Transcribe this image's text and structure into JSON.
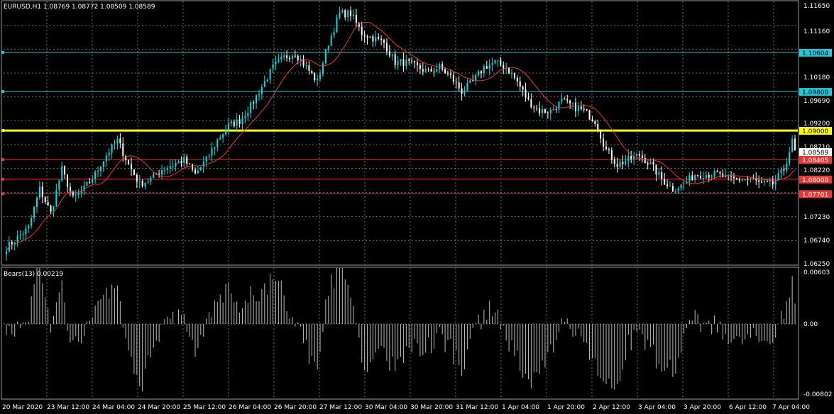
{
  "main_header": {
    "text": "EURUSD,H1  1.08769 1.08772 1.08509 1.08589"
  },
  "indicator_header": {
    "text": "Bears(13) 0.00219"
  },
  "price_axis": [
    "1.11650",
    "1.11160",
    "1.10180",
    "1.09690",
    "1.09200",
    "1.08710",
    "1.08220",
    "1.07230",
    "1.06740",
    "1.06250"
  ],
  "indicator_axis": [
    "0.00603",
    "0.00",
    "-0.00802"
  ],
  "current_price": {
    "text": "1.08589",
    "value": 1.08589
  },
  "levels": [
    {
      "label": "1.10604",
      "value": 1.10604,
      "color": "#26c6da"
    },
    {
      "label": "1.09800",
      "value": 1.098,
      "color": "#26c6da"
    },
    {
      "label": "1.09000",
      "value": 1.09,
      "color": "#ffff00"
    },
    {
      "label": "1.08405",
      "value": 1.08405,
      "color": "#e53935"
    },
    {
      "label": "1.08000",
      "value": 1.08,
      "color": "#e53935"
    },
    {
      "label": "1.07701",
      "value": 1.07701,
      "color": "#e53935"
    }
  ],
  "time_axis": [
    "20 Mar 2020",
    "23 Mar 12:00",
    "24 Mar 04:00",
    "24 Mar 20:00",
    "25 Mar 12:00",
    "26 Mar 04:00",
    "26 Mar 20:00",
    "27 Mar 12:00",
    "30 Mar 04:00",
    "30 Mar 20:00",
    "31 Mar 12:00",
    "1 Apr 04:00",
    "1 Apr 20:00",
    "2 Apr 12:00",
    "3 Apr 04:00",
    "3 Apr 20:00",
    "6 Apr 12:00",
    "7 Apr 04:00"
  ],
  "colors": {
    "background": "#000000",
    "grid": "#6b6b6b",
    "bull_candle": "#00e0e0",
    "bear_candle": "#ffffff",
    "ma_line": "#e53935",
    "bars": "#bdbdbd"
  },
  "chart_data": [
    {
      "type": "candlestick",
      "title": "EURUSD,H1",
      "ylim": [
        1.0625,
        1.1165
      ],
      "close_anchors": [
        [
          0,
          1.066
        ],
        [
          4,
          1.068
        ],
        [
          8,
          1.07
        ],
        [
          12,
          1.078
        ],
        [
          16,
          1.073
        ],
        [
          20,
          1.082
        ],
        [
          24,
          1.076
        ],
        [
          28,
          1.078
        ],
        [
          32,
          1.081
        ],
        [
          36,
          1.085
        ],
        [
          40,
          1.088
        ],
        [
          44,
          1.083
        ],
        [
          48,
          1.079
        ],
        [
          52,
          1.08
        ],
        [
          56,
          1.082
        ],
        [
          60,
          1.083
        ],
        [
          64,
          1.084
        ],
        [
          68,
          1.081
        ],
        [
          72,
          1.084
        ],
        [
          76,
          1.088
        ],
        [
          80,
          1.091
        ],
        [
          84,
          1.092
        ],
        [
          88,
          1.095
        ],
        [
          92,
          1.099
        ],
        [
          96,
          1.103
        ],
        [
          100,
          1.105
        ],
        [
          104,
          1.106
        ],
        [
          108,
          1.103
        ],
        [
          112,
          1.1
        ],
        [
          116,
          1.108
        ],
        [
          120,
          1.114
        ],
        [
          124,
          1.114
        ],
        [
          128,
          1.11
        ],
        [
          132,
          1.109
        ],
        [
          136,
          1.108
        ],
        [
          140,
          1.104
        ],
        [
          144,
          1.104
        ],
        [
          148,
          1.103
        ],
        [
          152,
          1.102
        ],
        [
          156,
          1.103
        ],
        [
          160,
          1.101
        ],
        [
          164,
          1.098
        ],
        [
          168,
          1.1
        ],
        [
          172,
          1.103
        ],
        [
          176,
          1.104
        ],
        [
          180,
          1.103
        ],
        [
          184,
          1.1
        ],
        [
          188,
          1.096
        ],
        [
          192,
          1.094
        ],
        [
          196,
          1.094
        ],
        [
          200,
          1.096
        ],
        [
          204,
          1.095
        ],
        [
          208,
          1.094
        ],
        [
          212,
          1.092
        ],
        [
          216,
          1.086
        ],
        [
          220,
          1.083
        ],
        [
          224,
          1.084
        ],
        [
          228,
          1.085
        ],
        [
          232,
          1.083
        ],
        [
          236,
          1.08
        ],
        [
          240,
          1.078
        ],
        [
          244,
          1.079
        ],
        [
          248,
          1.081
        ],
        [
          252,
          1.081
        ],
        [
          256,
          1.081
        ],
        [
          260,
          1.08
        ],
        [
          264,
          1.08
        ],
        [
          268,
          1.08
        ],
        [
          272,
          1.079
        ],
        [
          276,
          1.079
        ],
        [
          280,
          1.082
        ],
        [
          283,
          1.0877
        ],
        [
          284,
          1.0859
        ]
      ]
    },
    {
      "type": "bar",
      "title": "Bears(13)",
      "ylim": [
        -0.00802,
        0.00603
      ],
      "series": [
        {
          "name": "Bears(13)",
          "last": 0.00219
        }
      ]
    }
  ]
}
